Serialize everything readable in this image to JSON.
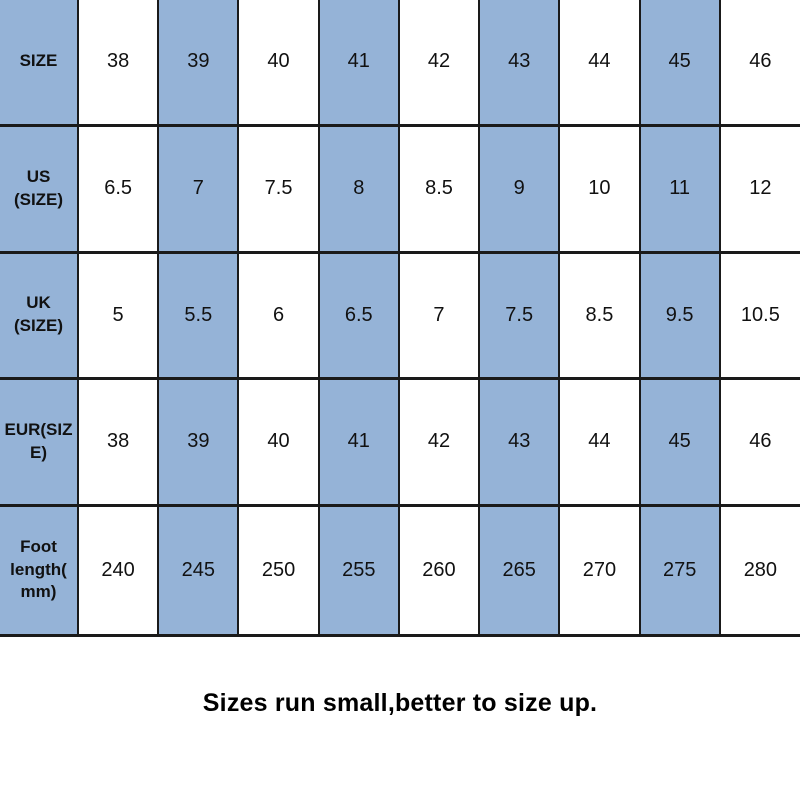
{
  "page": {
    "background_color": "#ffffff",
    "accent_color": "#95B3D7",
    "border_color": "#1a1a1a"
  },
  "chart_data": {
    "type": "table",
    "rows": [
      {
        "header": "SIZE",
        "values": [
          "38",
          "39",
          "40",
          "41",
          "42",
          "43",
          "44",
          "45",
          "46"
        ]
      },
      {
        "header": "US\n(SIZE)",
        "values": [
          "6.5",
          "7",
          "7.5",
          "8",
          "8.5",
          "9",
          "10",
          "11",
          "12"
        ]
      },
      {
        "header": "UK\n(SIZE)",
        "values": [
          "5",
          "5.5",
          "6",
          "6.5",
          "7",
          "7.5",
          "8.5",
          "9.5",
          "10.5"
        ]
      },
      {
        "header": "EUR(SIZ\nE)",
        "values": [
          "38",
          "39",
          "40",
          "41",
          "42",
          "43",
          "44",
          "45",
          "46"
        ]
      },
      {
        "header": "Foot\nlength(\nmm)",
        "values": [
          "240",
          "245",
          "250",
          "255",
          "260",
          "265",
          "270",
          "275",
          "280"
        ]
      }
    ]
  },
  "footer": {
    "note": "Sizes run small,better to size up."
  }
}
